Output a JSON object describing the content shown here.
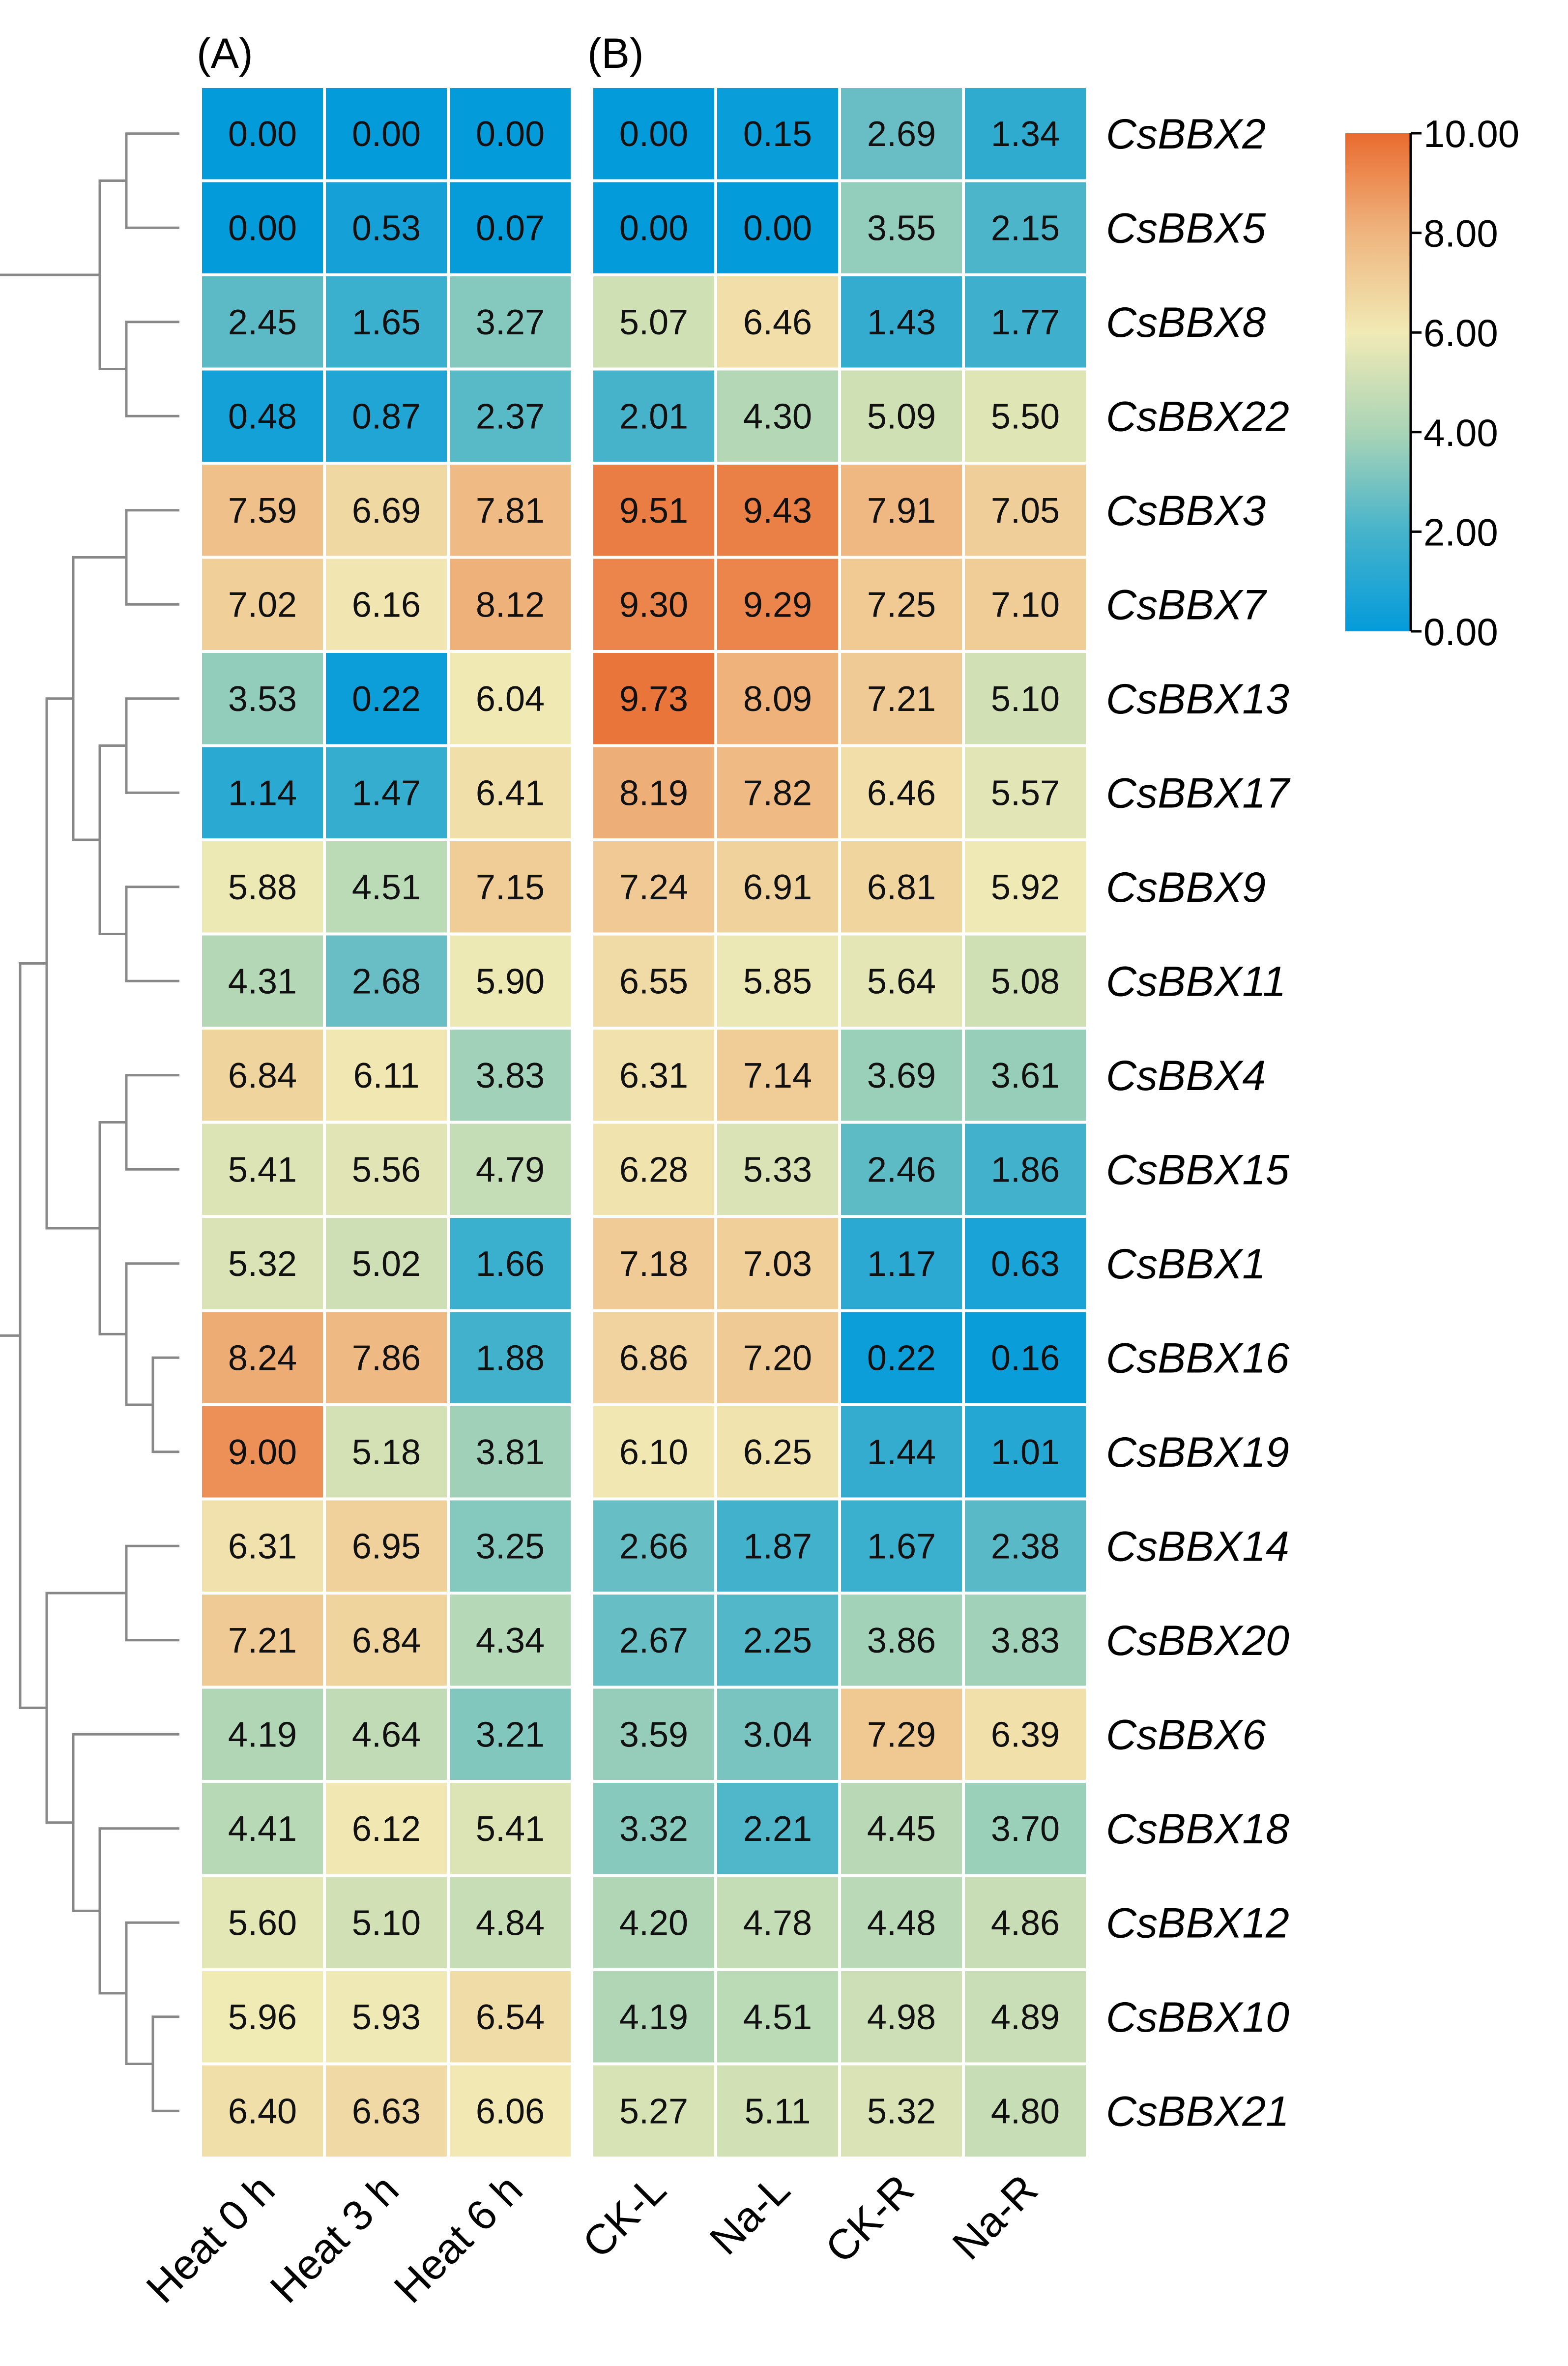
{
  "chart_data": {
    "type": "heatmap",
    "panels": [
      {
        "label": "(A)",
        "columns": [
          "Heat 0 h",
          "Heat 3 h",
          "Heat 6 h"
        ]
      },
      {
        "label": "(B)",
        "columns": [
          "CK-L",
          "Na-L",
          "CK-R",
          "Na-R"
        ]
      }
    ],
    "genes": [
      "CsBBX2",
      "CsBBX5",
      "CsBBX8",
      "CsBBX22",
      "CsBBX3",
      "CsBBX7",
      "CsBBX13",
      "CsBBX17",
      "CsBBX9",
      "CsBBX11",
      "CsBBX4",
      "CsBBX15",
      "CsBBX1",
      "CsBBX16",
      "CsBBX19",
      "CsBBX14",
      "CsBBX20",
      "CsBBX6",
      "CsBBX18",
      "CsBBX12",
      "CsBBX10",
      "CsBBX21"
    ],
    "values_A": [
      [
        0.0,
        0.0,
        0.0
      ],
      [
        0.0,
        0.53,
        0.07
      ],
      [
        2.45,
        1.65,
        3.27
      ],
      [
        0.48,
        0.87,
        2.37
      ],
      [
        7.59,
        6.69,
        7.81
      ],
      [
        7.02,
        6.16,
        8.12
      ],
      [
        3.53,
        0.22,
        6.04
      ],
      [
        1.14,
        1.47,
        6.41
      ],
      [
        5.88,
        4.51,
        7.15
      ],
      [
        4.31,
        2.68,
        5.9
      ],
      [
        6.84,
        6.11,
        3.83
      ],
      [
        5.41,
        5.56,
        4.79
      ],
      [
        5.32,
        5.02,
        1.66
      ],
      [
        8.24,
        7.86,
        1.88
      ],
      [
        9.0,
        5.18,
        3.81
      ],
      [
        6.31,
        6.95,
        3.25
      ],
      [
        7.21,
        6.84,
        4.34
      ],
      [
        4.19,
        4.64,
        3.21
      ],
      [
        4.41,
        6.12,
        5.41
      ],
      [
        5.6,
        5.1,
        4.84
      ],
      [
        5.96,
        5.93,
        6.54
      ],
      [
        6.4,
        6.63,
        6.06
      ]
    ],
    "values_B": [
      [
        0.0,
        0.15,
        2.69,
        1.34
      ],
      [
        0.0,
        0.0,
        3.55,
        2.15
      ],
      [
        5.07,
        6.46,
        1.43,
        1.77
      ],
      [
        2.01,
        4.3,
        5.09,
        5.5
      ],
      [
        9.51,
        9.43,
        7.91,
        7.05
      ],
      [
        9.3,
        9.29,
        7.25,
        7.1
      ],
      [
        9.73,
        8.09,
        7.21,
        5.1
      ],
      [
        8.19,
        7.82,
        6.46,
        5.57
      ],
      [
        7.24,
        6.91,
        6.81,
        5.92
      ],
      [
        6.55,
        5.85,
        5.64,
        5.08
      ],
      [
        6.31,
        7.14,
        3.69,
        3.61
      ],
      [
        6.28,
        5.33,
        2.46,
        1.86
      ],
      [
        7.18,
        7.03,
        1.17,
        0.63
      ],
      [
        6.86,
        7.2,
        0.22,
        0.16
      ],
      [
        6.1,
        6.25,
        1.44,
        1.01
      ],
      [
        2.66,
        1.87,
        1.67,
        2.38
      ],
      [
        2.67,
        2.25,
        3.86,
        3.83
      ],
      [
        3.59,
        3.04,
        7.29,
        6.39
      ],
      [
        3.32,
        2.21,
        4.45,
        3.7
      ],
      [
        4.2,
        4.78,
        4.48,
        4.86
      ],
      [
        4.19,
        4.51,
        4.98,
        4.89
      ],
      [
        5.27,
        5.11,
        5.32,
        4.8
      ]
    ],
    "colorbar": {
      "range": [
        0,
        10
      ],
      "tick_values": [
        0,
        2,
        4,
        6,
        8,
        10
      ],
      "tick_labels": [
        "0.00",
        "2.00",
        "4.00",
        "6.00",
        "8.00",
        "10.00"
      ],
      "stops": [
        "#049BDB",
        "#46B3CB",
        "#A9D4B6",
        "#F1EAB5",
        "#EFB57F",
        "#E96B2F"
      ]
    },
    "dendrogram": {
      "nodes": [
        [
          "CsBBX2",
          "CsBBX5",
          2
        ],
        [
          "CsBBX8",
          "CsBBX22",
          2
        ],
        [
          "n0",
          "n1",
          3
        ],
        [
          "CsBBX3",
          "CsBBX7",
          2
        ],
        [
          "CsBBX13",
          "CsBBX17",
          2
        ],
        [
          "CsBBX9",
          "CsBBX11",
          2
        ],
        [
          "n4",
          "n5",
          3
        ],
        [
          "n3",
          "n6",
          4
        ],
        [
          "CsBBX4",
          "CsBBX15",
          2
        ],
        [
          "CsBBX16",
          "CsBBX19",
          1
        ],
        [
          "CsBBX1",
          "n9",
          2
        ],
        [
          "n8",
          "n10",
          3
        ],
        [
          "n7",
          "n11",
          5
        ],
        [
          "CsBBX14",
          "CsBBX20",
          2
        ],
        [
          "CsBBX10",
          "CsBBX21",
          1
        ],
        [
          "CsBBX12",
          "n14",
          2
        ],
        [
          "CsBBX18",
          "n15",
          3
        ],
        [
          "CsBBX6",
          "n16",
          4
        ],
        [
          "n13",
          "n17",
          5
        ],
        [
          "n12",
          "n18",
          6
        ],
        [
          "n2",
          "n19",
          7
        ]
      ],
      "color": "#888888"
    }
  }
}
